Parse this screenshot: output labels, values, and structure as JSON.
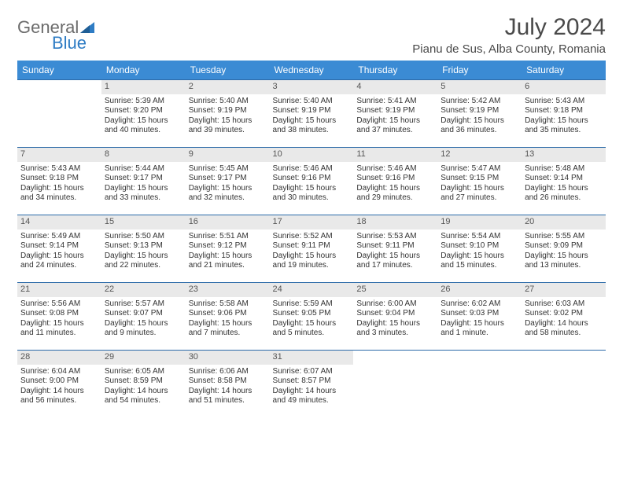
{
  "logo": {
    "word1": "General",
    "word2": "Blue"
  },
  "title": "July 2024",
  "location": "Pianu de Sus, Alba County, Romania",
  "colors": {
    "header_bg": "#3b8bd4",
    "header_text": "#ffffff",
    "daynum_bg": "#e9e9e9",
    "border": "#2b6aa8",
    "logo_gray": "#6b6b6b",
    "logo_blue": "#2e7cc4"
  },
  "table": {
    "columns": [
      "Sunday",
      "Monday",
      "Tuesday",
      "Wednesday",
      "Thursday",
      "Friday",
      "Saturday"
    ],
    "col_width_pct": 14.28,
    "header_fontsize": 12,
    "cell_fontsize": 10,
    "first_weekday_index": 1,
    "days_in_month": 31
  },
  "days": {
    "1": {
      "sunrise": "5:39 AM",
      "sunset": "9:20 PM",
      "daylight": "15 hours and 40 minutes."
    },
    "2": {
      "sunrise": "5:40 AM",
      "sunset": "9:19 PM",
      "daylight": "15 hours and 39 minutes."
    },
    "3": {
      "sunrise": "5:40 AM",
      "sunset": "9:19 PM",
      "daylight": "15 hours and 38 minutes."
    },
    "4": {
      "sunrise": "5:41 AM",
      "sunset": "9:19 PM",
      "daylight": "15 hours and 37 minutes."
    },
    "5": {
      "sunrise": "5:42 AM",
      "sunset": "9:19 PM",
      "daylight": "15 hours and 36 minutes."
    },
    "6": {
      "sunrise": "5:43 AM",
      "sunset": "9:18 PM",
      "daylight": "15 hours and 35 minutes."
    },
    "7": {
      "sunrise": "5:43 AM",
      "sunset": "9:18 PM",
      "daylight": "15 hours and 34 minutes."
    },
    "8": {
      "sunrise": "5:44 AM",
      "sunset": "9:17 PM",
      "daylight": "15 hours and 33 minutes."
    },
    "9": {
      "sunrise": "5:45 AM",
      "sunset": "9:17 PM",
      "daylight": "15 hours and 32 minutes."
    },
    "10": {
      "sunrise": "5:46 AM",
      "sunset": "9:16 PM",
      "daylight": "15 hours and 30 minutes."
    },
    "11": {
      "sunrise": "5:46 AM",
      "sunset": "9:16 PM",
      "daylight": "15 hours and 29 minutes."
    },
    "12": {
      "sunrise": "5:47 AM",
      "sunset": "9:15 PM",
      "daylight": "15 hours and 27 minutes."
    },
    "13": {
      "sunrise": "5:48 AM",
      "sunset": "9:14 PM",
      "daylight": "15 hours and 26 minutes."
    },
    "14": {
      "sunrise": "5:49 AM",
      "sunset": "9:14 PM",
      "daylight": "15 hours and 24 minutes."
    },
    "15": {
      "sunrise": "5:50 AM",
      "sunset": "9:13 PM",
      "daylight": "15 hours and 22 minutes."
    },
    "16": {
      "sunrise": "5:51 AM",
      "sunset": "9:12 PM",
      "daylight": "15 hours and 21 minutes."
    },
    "17": {
      "sunrise": "5:52 AM",
      "sunset": "9:11 PM",
      "daylight": "15 hours and 19 minutes."
    },
    "18": {
      "sunrise": "5:53 AM",
      "sunset": "9:11 PM",
      "daylight": "15 hours and 17 minutes."
    },
    "19": {
      "sunrise": "5:54 AM",
      "sunset": "9:10 PM",
      "daylight": "15 hours and 15 minutes."
    },
    "20": {
      "sunrise": "5:55 AM",
      "sunset": "9:09 PM",
      "daylight": "15 hours and 13 minutes."
    },
    "21": {
      "sunrise": "5:56 AM",
      "sunset": "9:08 PM",
      "daylight": "15 hours and 11 minutes."
    },
    "22": {
      "sunrise": "5:57 AM",
      "sunset": "9:07 PM",
      "daylight": "15 hours and 9 minutes."
    },
    "23": {
      "sunrise": "5:58 AM",
      "sunset": "9:06 PM",
      "daylight": "15 hours and 7 minutes."
    },
    "24": {
      "sunrise": "5:59 AM",
      "sunset": "9:05 PM",
      "daylight": "15 hours and 5 minutes."
    },
    "25": {
      "sunrise": "6:00 AM",
      "sunset": "9:04 PM",
      "daylight": "15 hours and 3 minutes."
    },
    "26": {
      "sunrise": "6:02 AM",
      "sunset": "9:03 PM",
      "daylight": "15 hours and 1 minute."
    },
    "27": {
      "sunrise": "6:03 AM",
      "sunset": "9:02 PM",
      "daylight": "14 hours and 58 minutes."
    },
    "28": {
      "sunrise": "6:04 AM",
      "sunset": "9:00 PM",
      "daylight": "14 hours and 56 minutes."
    },
    "29": {
      "sunrise": "6:05 AM",
      "sunset": "8:59 PM",
      "daylight": "14 hours and 54 minutes."
    },
    "30": {
      "sunrise": "6:06 AM",
      "sunset": "8:58 PM",
      "daylight": "14 hours and 51 minutes."
    },
    "31": {
      "sunrise": "6:07 AM",
      "sunset": "8:57 PM",
      "daylight": "14 hours and 49 minutes."
    }
  },
  "labels": {
    "sunrise": "Sunrise:",
    "sunset": "Sunset:",
    "daylight": "Daylight:"
  }
}
